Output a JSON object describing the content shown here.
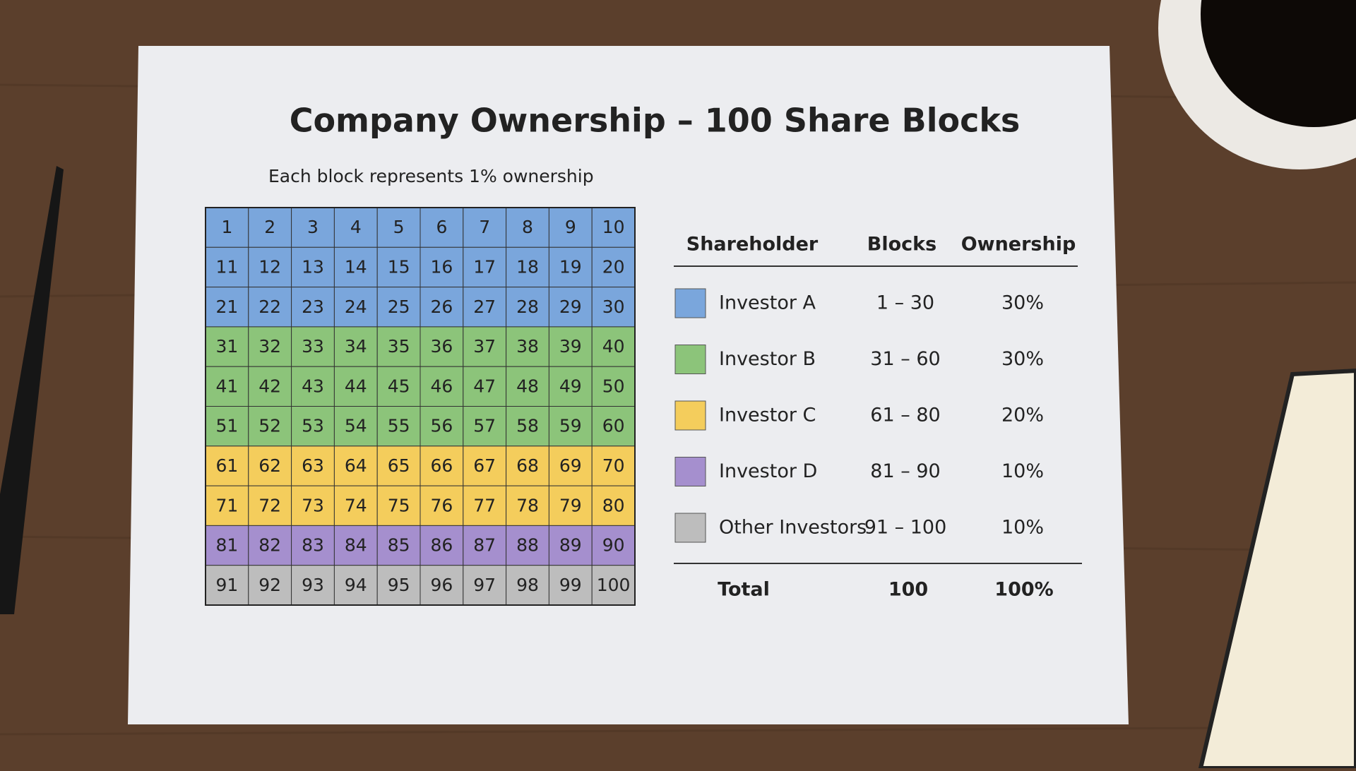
{
  "title": "Company Ownership – 100 Share Blocks",
  "subtitle": "Each block represents 1% ownership",
  "grid": {
    "rows": [
      {
        "color": "#7aa6dc",
        "cells": [
          1,
          2,
          3,
          4,
          5,
          6,
          7,
          8,
          9,
          10
        ]
      },
      {
        "color": "#7aa6dc",
        "cells": [
          11,
          12,
          13,
          14,
          15,
          16,
          17,
          18,
          19,
          20
        ]
      },
      {
        "color": "#7aa6dc",
        "cells": [
          21,
          22,
          23,
          24,
          25,
          26,
          27,
          28,
          29,
          30
        ]
      },
      {
        "color": "#8cc47a",
        "cells": [
          31,
          32,
          33,
          34,
          35,
          36,
          37,
          38,
          39,
          40
        ]
      },
      {
        "color": "#8cc47a",
        "cells": [
          41,
          42,
          43,
          44,
          45,
          46,
          47,
          48,
          49,
          50
        ]
      },
      {
        "color": "#8cc47a",
        "cells": [
          51,
          52,
          53,
          54,
          55,
          56,
          57,
          58,
          59,
          60
        ]
      },
      {
        "color": "#f4cd5c",
        "cells": [
          61,
          62,
          63,
          64,
          65,
          66,
          67,
          68,
          69,
          70
        ]
      },
      {
        "color": "#f4cd5c",
        "cells": [
          71,
          72,
          73,
          74,
          75,
          76,
          77,
          78,
          79,
          80
        ]
      },
      {
        "color": "#a58fce",
        "cells": [
          81,
          82,
          83,
          84,
          85,
          86,
          87,
          88,
          89,
          90
        ]
      },
      {
        "color": "#bdbdbd",
        "cells": [
          91,
          92,
          93,
          94,
          95,
          96,
          97,
          98,
          99,
          100
        ]
      }
    ]
  },
  "table": {
    "headers": [
      "Shareholder",
      "Blocks",
      "Ownership"
    ],
    "rows": [
      {
        "color": "#7aa6dc",
        "name": "Investor A",
        "blocks": "1 – 30",
        "ownership": "30%"
      },
      {
        "color": "#8cc47a",
        "name": "Investor B",
        "blocks": "31 – 60",
        "ownership": "30%"
      },
      {
        "color": "#f4cd5c",
        "name": "Investor C",
        "blocks": "61 – 80",
        "ownership": "20%"
      },
      {
        "color": "#a58fce",
        "name": "Investor D",
        "blocks": "81 – 90",
        "ownership": "10%"
      },
      {
        "color": "#bdbdbd",
        "name": "Other Investors",
        "blocks": "91 – 100",
        "ownership": "10%"
      }
    ],
    "total": {
      "label": "Total",
      "blocks": "100",
      "ownership": "100%"
    }
  }
}
